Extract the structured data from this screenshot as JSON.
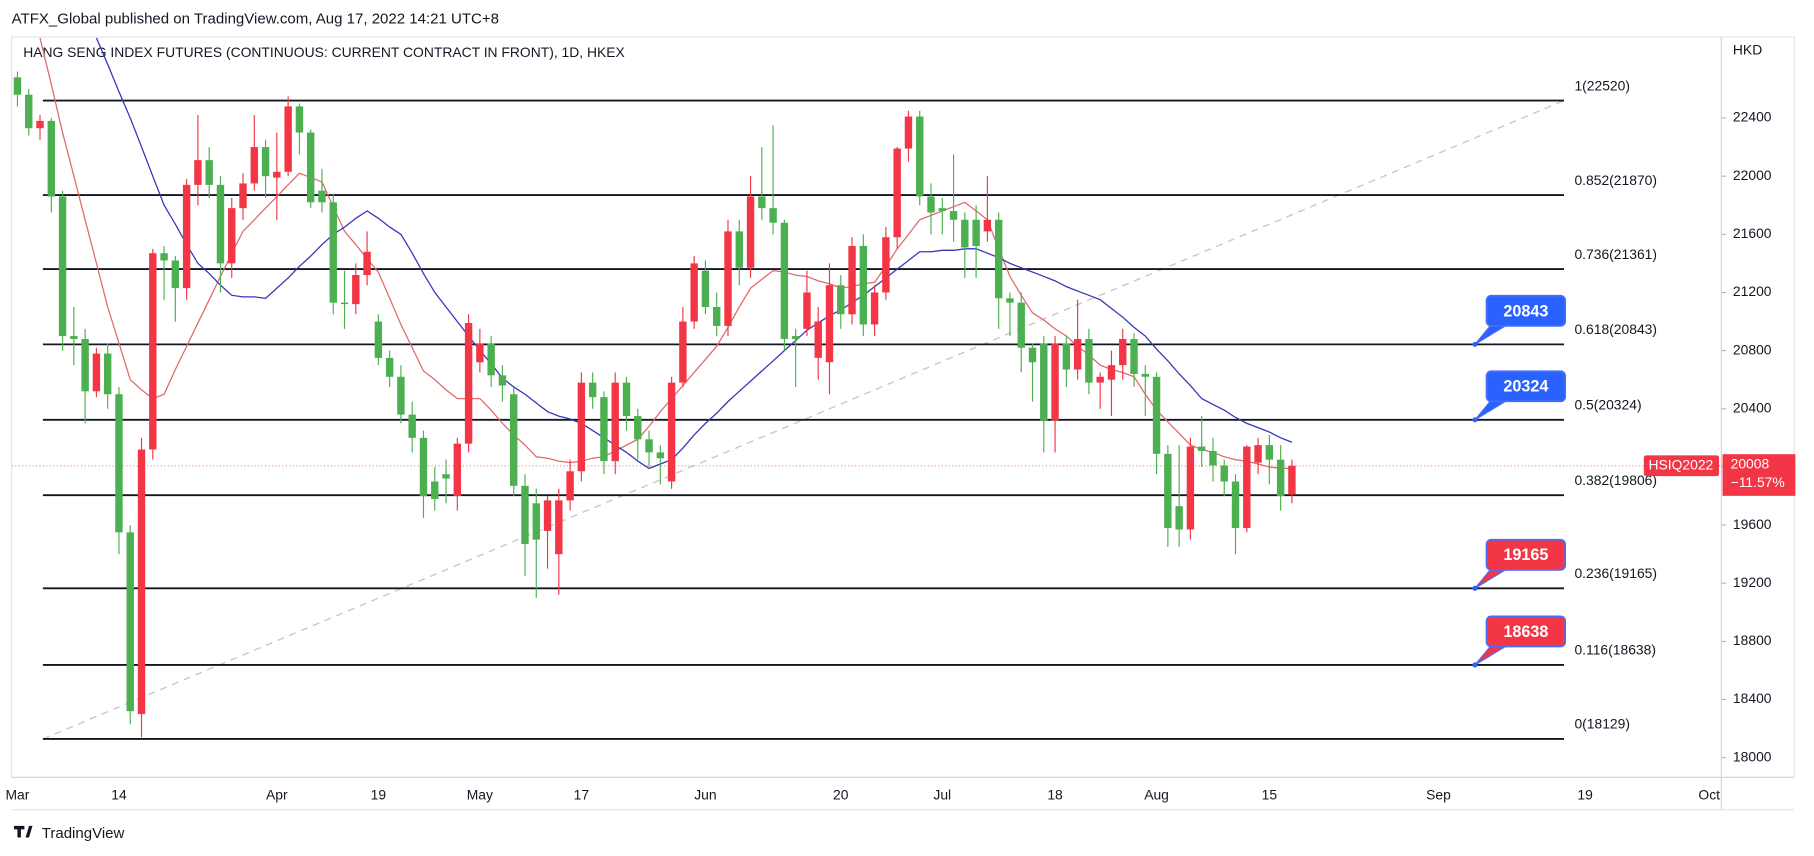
{
  "header": {
    "text": "ATFX_Global published on TradingView.com, Aug 17, 2022 14:21 UTC+8"
  },
  "footer": {
    "brand": "TradingView"
  },
  "chart_data": {
    "type": "candlestick",
    "title": "HANG SENG INDEX FUTURES (CONTINUOUS: CURRENT CONTRACT IN FRONT), 1D, HKEX",
    "y_axis_label": "HKD",
    "up_color": "#f23645",
    "down_color": "#4caf50",
    "ylim": [
      17865,
      22957
    ],
    "yticks": [
      18000,
      18400,
      18800,
      19200,
      19600,
      20000,
      20400,
      20800,
      21200,
      21600,
      22000,
      22400
    ],
    "categories": [
      "Mar",
      null,
      null,
      null,
      null,
      null,
      null,
      null,
      null,
      "14",
      null,
      null,
      null,
      null,
      null,
      null,
      null,
      null,
      null,
      null,
      null,
      null,
      null,
      "Apr",
      null,
      null,
      null,
      null,
      null,
      null,
      null,
      null,
      "19",
      null,
      null,
      null,
      null,
      null,
      null,
      null,
      null,
      "May",
      null,
      null,
      null,
      null,
      null,
      null,
      null,
      null,
      "17",
      null,
      null,
      null,
      null,
      null,
      null,
      null,
      null,
      null,
      null,
      "Jun",
      null,
      null,
      null,
      null,
      null,
      null,
      null,
      null,
      null,
      null,
      null,
      "20",
      null,
      null,
      null,
      null,
      null,
      null,
      null,
      null,
      "Jul",
      null,
      null,
      null,
      null,
      null,
      null,
      null,
      null,
      null,
      "18",
      null,
      null,
      null,
      null,
      null,
      null,
      null,
      null,
      "Aug",
      null,
      null,
      null,
      null,
      null,
      null,
      null,
      null,
      null,
      "15",
      null,
      null,
      null,
      null,
      null,
      null,
      null,
      null,
      null,
      null,
      null,
      null,
      null,
      null,
      "Sep",
      null,
      null,
      null,
      null,
      null,
      null,
      null,
      null,
      null,
      null,
      null,
      null,
      "19",
      null,
      null,
      null,
      null,
      null,
      null,
      null,
      null,
      null,
      null,
      "Oct"
    ],
    "open": [
      22680,
      22560,
      22330,
      22380,
      21860,
      20900,
      20880,
      20520,
      20780,
      20500,
      19550,
      18300,
      20120,
      21470,
      21420,
      21230,
      21940,
      22110,
      21940,
      21400,
      21780,
      21950,
      22200,
      21990,
      22030,
      22480,
      22300,
      21900,
      21820,
      21130,
      21120,
      21320,
      21000,
      20750,
      20620,
      20360,
      20200,
      19900,
      19950,
      19800,
      20160,
      20720,
      20850,
      20630,
      20500,
      19870,
      19750,
      19560,
      19400,
      19770,
      19970,
      20580,
      20480,
      20040,
      20580,
      20350,
      20190,
      20100,
      19900,
      20580,
      21000,
      21350,
      21100,
      20970,
      21620,
      21370,
      21860,
      21780,
      21680,
      20900,
      20950,
      20750,
      20720,
      21250,
      21050,
      21520,
      20980,
      21200,
      21580,
      22190,
      22410,
      21860,
      21780,
      21760,
      21700,
      21700,
      21620,
      21700,
      21160,
      21130,
      20820,
      20850,
      20320,
      20850,
      20670,
      20880,
      20580,
      20600,
      20700,
      20880,
      20640,
      20620,
      20090,
      19730,
      19570,
      20140,
      20110,
      20010,
      19900,
      19580,
      20030,
      20150,
      20050,
      19810,
      null,
      null,
      null,
      null,
      null,
      null,
      null,
      null,
      null,
      null,
      null,
      null,
      null,
      null,
      null,
      null,
      null,
      null,
      null,
      null,
      null,
      null,
      null,
      null,
      null,
      null,
      null,
      null,
      null,
      null,
      null,
      null,
      null,
      null,
      null,
      null,
      null
    ],
    "high": [
      22720,
      22600,
      22420,
      22400,
      21900,
      21100,
      20950,
      20820,
      20850,
      20550,
      19600,
      20200,
      21500,
      21520,
      21450,
      21980,
      22420,
      22200,
      22000,
      21850,
      22020,
      22420,
      22250,
      22300,
      22550,
      22500,
      22320,
      22050,
      21880,
      21350,
      21400,
      21620,
      21050,
      20800,
      20700,
      20450,
      20250,
      20000,
      20050,
      20200,
      21050,
      20950,
      20900,
      20700,
      20550,
      19950,
      19850,
      19800,
      19850,
      20050,
      20650,
      20650,
      20520,
      20650,
      20620,
      20400,
      20250,
      20150,
      20620,
      21100,
      21450,
      21420,
      21200,
      21700,
      21700,
      22000,
      22200,
      22350,
      21700,
      20950,
      21350,
      21100,
      21400,
      21320,
      21580,
      21600,
      21250,
      21650,
      22200,
      22450,
      22450,
      21950,
      21850,
      22150,
      21750,
      21800,
      22000,
      21750,
      21200,
      21200,
      20850,
      20900,
      20900,
      20900,
      21150,
      20950,
      20650,
      20800,
      20950,
      20920,
      20700,
      20650,
      20150,
      20150,
      20200,
      20350,
      20200,
      20050,
      19950,
      20150,
      20200,
      20220,
      20150,
      20050,
      null,
      null,
      null,
      null,
      null,
      null,
      null,
      null,
      null,
      null,
      null,
      null,
      null,
      null,
      null,
      null,
      null,
      null,
      null,
      null,
      null,
      null,
      null,
      null,
      null,
      null,
      null,
      null,
      null,
      null,
      null,
      null,
      null,
      null,
      null,
      null,
      null
    ],
    "low": [
      22480,
      22280,
      22250,
      21750,
      20800,
      20700,
      20300,
      20480,
      20400,
      19400,
      18230,
      18140,
      20050,
      21150,
      21000,
      21150,
      21800,
      21850,
      21200,
      21300,
      21700,
      21900,
      21850,
      21700,
      22000,
      22150,
      21780,
      21750,
      21050,
      20950,
      21050,
      21250,
      20700,
      20550,
      20300,
      20100,
      19650,
      19700,
      19750,
      19700,
      20100,
      20650,
      20550,
      20450,
      19800,
      19250,
      19100,
      19300,
      19120,
      19700,
      19900,
      20400,
      19950,
      19950,
      20250,
      20050,
      20000,
      19880,
      19850,
      20550,
      20950,
      21050,
      20900,
      20900,
      21250,
      21300,
      21700,
      21600,
      20800,
      20550,
      20900,
      20600,
      20500,
      20950,
      20980,
      20900,
      20900,
      21150,
      21500,
      22100,
      21800,
      21600,
      21600,
      21550,
      21300,
      21300,
      21550,
      20950,
      20900,
      20650,
      20450,
      20100,
      20100,
      20550,
      20600,
      20500,
      20400,
      20350,
      20600,
      20550,
      20350,
      19950,
      19450,
      19450,
      19500,
      20000,
      19900,
      19800,
      19400,
      19550,
      19950,
      19880,
      19700,
      19750,
      null,
      null,
      null,
      null,
      null,
      null,
      null,
      null,
      null,
      null,
      null,
      null,
      null,
      null,
      null,
      null,
      null,
      null,
      null,
      null,
      null,
      null,
      null,
      null,
      null,
      null,
      null,
      null,
      null,
      null,
      null,
      null,
      null,
      null,
      null,
      null,
      null
    ],
    "close": [
      22560,
      22330,
      22380,
      21860,
      20900,
      20880,
      20520,
      20780,
      20500,
      19550,
      18320,
      20120,
      21470,
      21420,
      21230,
      21940,
      22110,
      21940,
      21400,
      21780,
      21950,
      22200,
      22000,
      22030,
      22480,
      22300,
      21820,
      21820,
      21130,
      21120,
      21320,
      21480,
      20750,
      20620,
      20360,
      20200,
      19800,
      19780,
      19920,
      20160,
      20990,
      20850,
      20630,
      20560,
      19870,
      19470,
      19500,
      19770,
      19770,
      19970,
      20580,
      20480,
      20040,
      20580,
      20350,
      20190,
      20100,
      20060,
      20580,
      21000,
      21400,
      21100,
      20970,
      21620,
      21370,
      21860,
      21780,
      21680,
      20880,
      20880,
      21200,
      21000,
      21250,
      21050,
      21520,
      20980,
      21200,
      21580,
      22190,
      22410,
      21860,
      21750,
      21760,
      21700,
      21510,
      21520,
      21700,
      21160,
      21130,
      20820,
      20720,
      20320,
      20850,
      20670,
      20880,
      20580,
      20620,
      20700,
      20880,
      20640,
      20620,
      20090,
      19580,
      19570,
      20140,
      20110,
      20010,
      19900,
      19580,
      20140,
      20150,
      20050,
      19800,
      20008,
      null,
      null,
      null,
      null,
      null,
      null,
      null,
      null,
      null,
      null,
      null,
      null,
      null,
      null,
      null,
      null,
      null,
      null,
      null,
      null,
      null,
      null,
      null,
      null,
      null,
      null,
      null,
      null,
      null,
      null,
      null,
      null,
      null,
      null,
      null,
      null,
      null
    ],
    "lines": [
      {
        "color": "#e06a6a",
        "values": [
          null,
          null,
          22950,
          22630,
          22300,
          22000,
          21700,
          21400,
          21100,
          20850,
          20600,
          20530,
          20470,
          20500,
          20670,
          20830,
          20990,
          21150,
          21310,
          21470,
          21620,
          21700,
          21780,
          21860,
          21940,
          22020,
          21990,
          21960,
          21790,
          21620,
          21530,
          21430,
          21340,
          21160,
          20980,
          20820,
          20660,
          20600,
          20530,
          20470,
          20470,
          20470,
          20390,
          20300,
          20220,
          20150,
          20070,
          20060,
          20040,
          20030,
          20040,
          20060,
          20070,
          20110,
          20150,
          20190,
          20280,
          20380,
          20470,
          20560,
          20650,
          20740,
          20830,
          20960,
          21100,
          21230,
          21290,
          21350,
          21340,
          21320,
          21310,
          21280,
          21260,
          21230,
          21240,
          21260,
          21270,
          21380,
          21500,
          21600,
          21700,
          21730,
          21760,
          21790,
          21820,
          21760,
          21700,
          21500,
          21310,
          21180,
          21060,
          21010,
          20950,
          20900,
          20830,
          20770,
          20700,
          20670,
          20650,
          20620,
          20500,
          20390,
          20310,
          20230,
          20150,
          20120,
          20100,
          20070,
          20050,
          20040,
          20020,
          20000,
          19990,
          19990,
          null,
          null,
          null,
          null,
          null,
          null,
          null,
          null,
          null,
          null,
          null,
          null,
          null,
          null,
          null,
          null,
          null,
          null,
          null,
          null,
          null,
          null,
          null,
          null,
          null,
          null,
          null,
          null,
          null,
          null,
          null,
          null,
          null,
          null,
          null,
          null,
          null
        ]
      },
      {
        "color": "#3535b8",
        "values": [
          null,
          null,
          null,
          null,
          null,
          null,
          null,
          22950,
          22770,
          22580,
          22400,
          22200,
          22000,
          21800,
          21670,
          21530,
          21400,
          21330,
          21250,
          21180,
          21170,
          21170,
          21160,
          21230,
          21300,
          21380,
          21450,
          21530,
          21600,
          21650,
          21710,
          21760,
          21710,
          21650,
          21600,
          21470,
          21330,
          21200,
          21100,
          21000,
          20900,
          20800,
          20710,
          20610,
          20550,
          20500,
          20440,
          20380,
          20350,
          20330,
          20300,
          20250,
          20200,
          20150,
          20100,
          20040,
          19990,
          20020,
          20050,
          20130,
          20220,
          20300,
          20370,
          20450,
          20520,
          20590,
          20660,
          20730,
          20800,
          20870,
          20940,
          20990,
          21040,
          21080,
          21130,
          21180,
          21240,
          21300,
          21360,
          21420,
          21480,
          21480,
          21490,
          21490,
          21500,
          21500,
          21470,
          21440,
          21400,
          21370,
          21340,
          21310,
          21280,
          21240,
          21210,
          21180,
          21150,
          21090,
          21030,
          20960,
          20900,
          20810,
          20730,
          20640,
          20560,
          20470,
          20430,
          20390,
          20340,
          20300,
          20270,
          20240,
          20200,
          20170,
          null,
          null,
          null,
          null,
          null,
          null,
          null,
          null,
          null,
          null,
          null,
          null,
          null,
          null,
          null,
          null,
          null,
          null,
          null,
          null,
          null,
          null,
          null,
          null,
          null,
          null,
          null,
          null,
          null,
          null,
          null,
          null,
          null,
          null,
          null,
          null,
          null
        ]
      }
    ],
    "fib_levels": [
      {
        "value": 22520,
        "label": "1(22520)"
      },
      {
        "value": 21870,
        "label": "0.852(21870)"
      },
      {
        "value": 21361,
        "label": "0.736(21361)"
      },
      {
        "value": 20843,
        "label": "0.618(20843)"
      },
      {
        "value": 20324,
        "label": "0.5(20324)"
      },
      {
        "value": 19806,
        "label": "0.382(19806)"
      },
      {
        "value": 19165,
        "label": "0.236(19165)"
      },
      {
        "value": 18638,
        "label": "0.116(18638)"
      },
      {
        "value": 18129,
        "label": "0(18129)"
      }
    ],
    "callouts": [
      {
        "value": 20843,
        "color": "#2962ff"
      },
      {
        "value": 20324,
        "color": "#2962ff"
      },
      {
        "value": 19165,
        "color": "#f23645"
      },
      {
        "value": 18638,
        "color": "#f23645"
      }
    ],
    "last_price": {
      "symbol": "HSIQ2022",
      "value": 20008,
      "change": {
        "value": -11.57,
        "label": "−11.57%"
      },
      "color": "#f23645"
    }
  }
}
